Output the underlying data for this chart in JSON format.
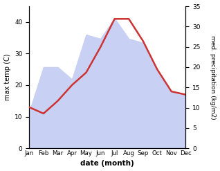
{
  "months": [
    "Jan",
    "Feb",
    "Mar",
    "Apr",
    "May",
    "Jun",
    "Jul",
    "Aug",
    "Sep",
    "Oct",
    "Nov",
    "Dec"
  ],
  "max_temp": [
    13,
    11,
    15,
    20,
    24,
    32,
    41,
    41,
    34,
    25,
    18,
    17
  ],
  "precipitation": [
    9,
    20,
    20,
    17,
    28,
    27,
    32,
    27,
    26,
    19,
    14,
    13
  ],
  "temp_color": "#cc3333",
  "precip_fill_color": "#c8d0f4",
  "ylabel_left": "max temp (C)",
  "ylabel_right": "med. precipitation (kg/m2)",
  "xlabel": "date (month)",
  "ylim_left": [
    0,
    45
  ],
  "ylim_right": [
    0,
    35
  ],
  "yticks_left": [
    0,
    10,
    20,
    30,
    40
  ],
  "yticks_right": [
    0,
    5,
    10,
    15,
    20,
    25,
    30,
    35
  ],
  "background_color": "#ffffff",
  "line_width": 1.8
}
